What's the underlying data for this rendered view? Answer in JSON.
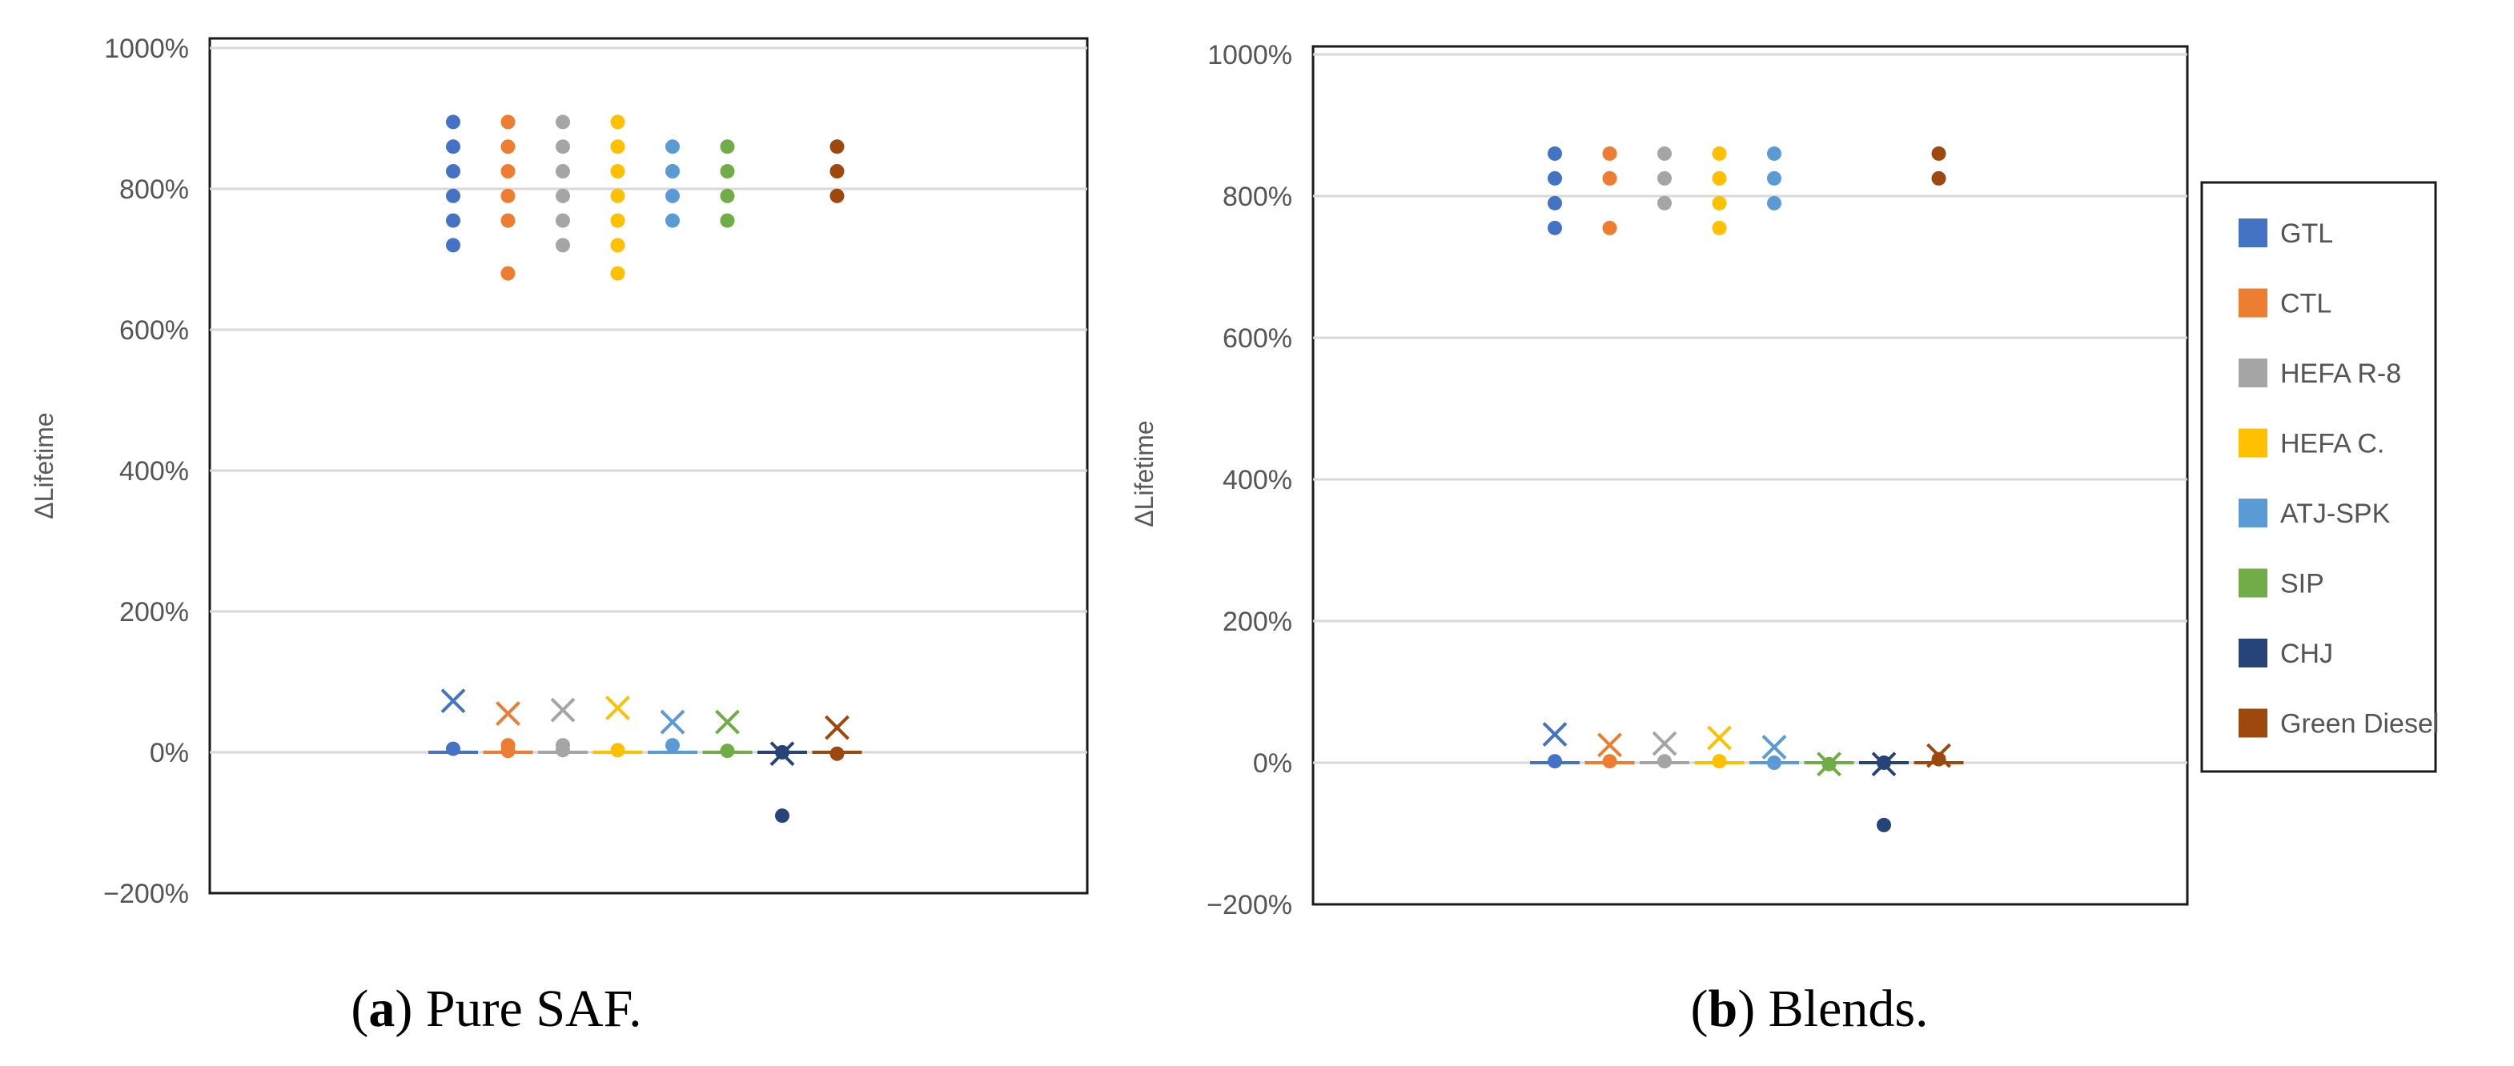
{
  "chart_data": [
    {
      "type": "scatter",
      "panel": "a",
      "caption_letter": "a",
      "caption_text": "Pure SAF.",
      "ylabel": "ΔLifetime",
      "ylim": [
        -200,
        1000
      ],
      "yticks": [
        -200,
        0,
        200,
        400,
        600,
        800,
        1000
      ],
      "ytick_labels": [
        "−200%",
        "0%",
        "200%",
        "400%",
        "600%",
        "800%",
        "1000%"
      ],
      "series": [
        {
          "name": "GTL",
          "points": [
            720,
            755,
            790,
            825,
            860,
            895,
            5
          ],
          "mean": 73,
          "median": 0
        },
        {
          "name": "CTL",
          "points": [
            680,
            755,
            790,
            825,
            860,
            895,
            10,
            2
          ],
          "mean": 55,
          "median": 0
        },
        {
          "name": "HEFA R-8",
          "points": [
            720,
            755,
            790,
            825,
            860,
            895,
            10,
            3
          ],
          "mean": 60,
          "median": 0
        },
        {
          "name": "HEFA C.",
          "points": [
            680,
            720,
            755,
            790,
            825,
            860,
            895,
            3
          ],
          "mean": 63,
          "median": 0
        },
        {
          "name": "ATJ-SPK",
          "points": [
            755,
            790,
            825,
            860,
            10
          ],
          "mean": 43,
          "median": 0
        },
        {
          "name": "SIP",
          "points": [
            755,
            790,
            825,
            860,
            2
          ],
          "mean": 43,
          "median": 0
        },
        {
          "name": "CHJ",
          "points": [
            -90,
            0
          ],
          "mean": -2,
          "median": 0
        },
        {
          "name": "Green Diesel",
          "points": [
            790,
            825,
            860,
            -2
          ],
          "mean": 35,
          "median": 0
        }
      ]
    },
    {
      "type": "scatter",
      "panel": "b",
      "caption_letter": "b",
      "caption_text": "Blends.",
      "ylabel": "ΔLifetime",
      "ylim": [
        -200,
        1000
      ],
      "yticks": [
        -200,
        0,
        200,
        400,
        600,
        800,
        1000
      ],
      "ytick_labels": [
        "−200%",
        "0%",
        "200%",
        "400%",
        "600%",
        "800%",
        "1000%"
      ],
      "series": [
        {
          "name": "GTL",
          "points": [
            755,
            790,
            825,
            860,
            2
          ],
          "mean": 40,
          "median": 0
        },
        {
          "name": "CTL",
          "points": [
            755,
            825,
            860,
            2
          ],
          "mean": 25,
          "median": 0
        },
        {
          "name": "HEFA R-8",
          "points": [
            790,
            825,
            860,
            2
          ],
          "mean": 27,
          "median": 0
        },
        {
          "name": "HEFA C.",
          "points": [
            755,
            790,
            825,
            860,
            2
          ],
          "mean": 35,
          "median": 0
        },
        {
          "name": "ATJ-SPK",
          "points": [
            790,
            825,
            860,
            0
          ],
          "mean": 22,
          "median": 0
        },
        {
          "name": "SIP",
          "points": [
            -2
          ],
          "mean": -2,
          "median": 0
        },
        {
          "name": "CHJ",
          "points": [
            -88,
            0
          ],
          "mean": -2,
          "median": 0
        },
        {
          "name": "Green Diesel",
          "points": [
            825,
            860,
            5
          ],
          "mean": 10,
          "median": 0
        }
      ]
    }
  ],
  "legend": {
    "entries": [
      {
        "name": "GTL",
        "color": "#4472C4"
      },
      {
        "name": "CTL",
        "color": "#ED7D31"
      },
      {
        "name": "HEFA R-8",
        "color": "#A5A5A5"
      },
      {
        "name": "HEFA C.",
        "color": "#FFC000"
      },
      {
        "name": "ATJ-SPK",
        "color": "#5B9BD5"
      },
      {
        "name": "SIP",
        "color": "#70AD47"
      },
      {
        "name": "CHJ",
        "color": "#264478"
      },
      {
        "name": "Green Diesel",
        "color": "#9E480E"
      }
    ]
  }
}
